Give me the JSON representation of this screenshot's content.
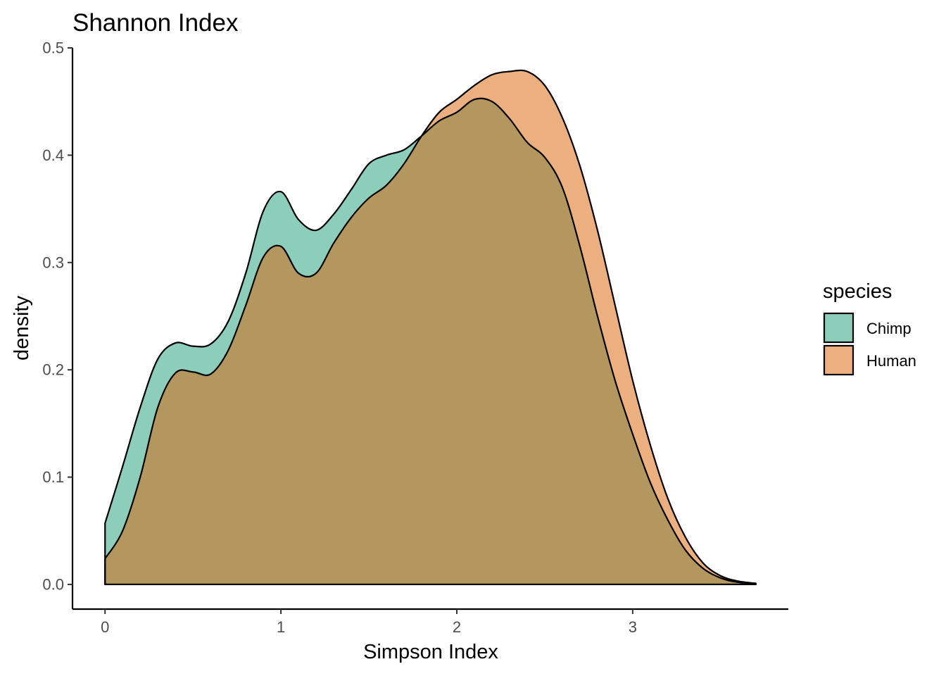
{
  "chart_data": {
    "type": "area",
    "title": "Shannon Index",
    "xlabel": "Simpson Index",
    "ylabel": "density",
    "xlim": [
      -0.185,
      3.885
    ],
    "ylim": [
      -0.023,
      0.5
    ],
    "x_ticks": [
      0,
      1,
      2,
      3
    ],
    "x_tick_labels": [
      "0",
      "1",
      "2",
      "3"
    ],
    "y_ticks": [
      0.0,
      0.1,
      0.2,
      0.3,
      0.4,
      0.5
    ],
    "y_tick_labels": [
      "0.0",
      "0.1",
      "0.2",
      "0.3",
      "0.4",
      "0.5"
    ],
    "grid": false,
    "legend": {
      "title": "species",
      "position": "right"
    },
    "series": [
      {
        "name": "Chimp",
        "color": "#1b9e77",
        "fill_opacity": 0.5,
        "x": [
          0,
          0.1,
          0.2,
          0.3,
          0.4,
          0.5,
          0.6,
          0.7,
          0.8,
          0.9,
          1.0,
          1.1,
          1.2,
          1.3,
          1.4,
          1.5,
          1.6,
          1.7,
          1.8,
          1.9,
          2.0,
          2.1,
          2.2,
          2.3,
          2.4,
          2.5,
          2.6,
          2.7,
          2.8,
          2.9,
          3.0,
          3.1,
          3.2,
          3.3,
          3.4,
          3.5,
          3.6,
          3.7
        ],
        "y": [
          0.057,
          0.11,
          0.165,
          0.21,
          0.225,
          0.222,
          0.224,
          0.245,
          0.29,
          0.348,
          0.366,
          0.34,
          0.33,
          0.345,
          0.368,
          0.392,
          0.4,
          0.405,
          0.418,
          0.432,
          0.44,
          0.452,
          0.45,
          0.434,
          0.412,
          0.398,
          0.37,
          0.315,
          0.25,
          0.19,
          0.14,
          0.095,
          0.06,
          0.032,
          0.015,
          0.006,
          0.002,
          0.001
        ]
      },
      {
        "name": "Human",
        "color": "#d95f02",
        "fill_opacity": 0.5,
        "x": [
          0,
          0.1,
          0.2,
          0.3,
          0.4,
          0.5,
          0.6,
          0.7,
          0.8,
          0.9,
          1.0,
          1.1,
          1.2,
          1.3,
          1.4,
          1.5,
          1.6,
          1.7,
          1.8,
          1.9,
          2.0,
          2.1,
          2.2,
          2.3,
          2.4,
          2.5,
          2.6,
          2.7,
          2.8,
          2.9,
          3.0,
          3.1,
          3.2,
          3.3,
          3.4,
          3.5,
          3.6,
          3.7
        ],
        "y": [
          0.024,
          0.05,
          0.1,
          0.165,
          0.197,
          0.198,
          0.196,
          0.218,
          0.26,
          0.305,
          0.315,
          0.29,
          0.29,
          0.318,
          0.342,
          0.36,
          0.372,
          0.392,
          0.418,
          0.44,
          0.452,
          0.465,
          0.475,
          0.478,
          0.478,
          0.465,
          0.435,
          0.39,
          0.33,
          0.26,
          0.19,
          0.13,
          0.08,
          0.044,
          0.02,
          0.008,
          0.003,
          0.001
        ]
      }
    ]
  }
}
